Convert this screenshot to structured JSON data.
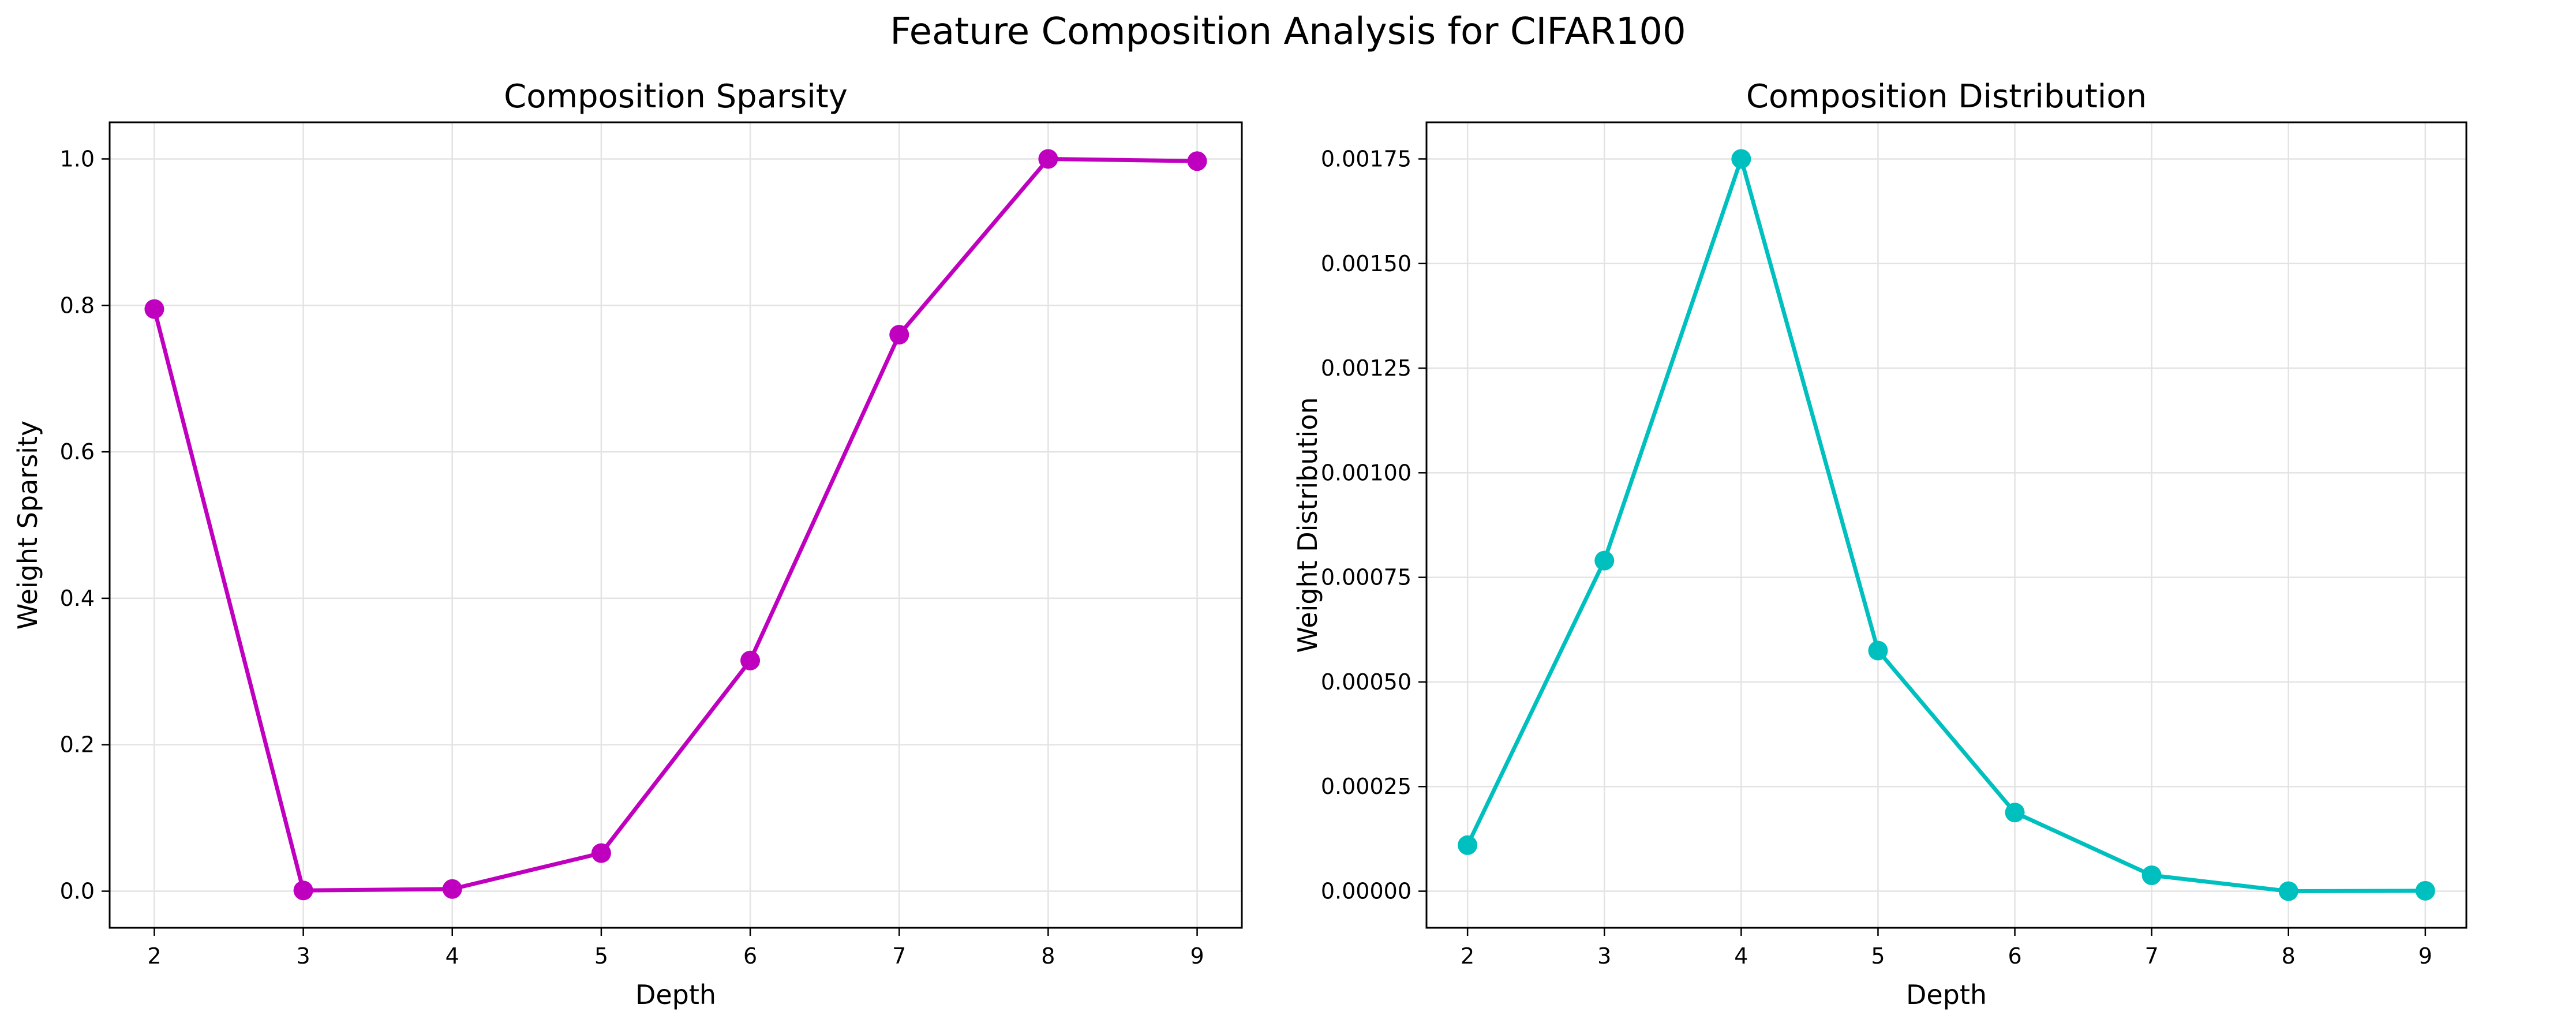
{
  "figure": {
    "suptitle": "Feature Composition Analysis for CIFAR100"
  },
  "chart_data": [
    {
      "type": "line",
      "title": "Composition Sparsity",
      "xlabel": "Depth",
      "ylabel": "Weight Sparsity",
      "x": [
        2,
        3,
        4,
        5,
        6,
        7,
        8,
        9
      ],
      "series": [
        {
          "values": [
            0.795,
            0.001,
            0.003,
            0.052,
            0.315,
            0.76,
            1.0,
            0.997
          ],
          "color": "#bf00bf"
        }
      ],
      "xlim": [
        1.7,
        9.3
      ],
      "ylim": [
        -0.05,
        1.05
      ],
      "xticks": [
        2,
        3,
        4,
        5,
        6,
        7,
        8,
        9
      ],
      "xtick_labels": [
        "2",
        "3",
        "4",
        "5",
        "6",
        "7",
        "8",
        "9"
      ],
      "yticks": [
        0.0,
        0.2,
        0.4,
        0.6,
        0.8,
        1.0
      ],
      "ytick_labels": [
        "0.0",
        "0.2",
        "0.4",
        "0.6",
        "0.8",
        "1.0"
      ],
      "grid": true,
      "marker": "circle"
    },
    {
      "type": "line",
      "title": "Composition Distribution",
      "xlabel": "Depth",
      "ylabel": "Weight Distribution",
      "x": [
        2,
        3,
        4,
        5,
        6,
        7,
        8,
        9
      ],
      "series": [
        {
          "values": [
            0.00011,
            0.00079,
            0.00175,
            0.000575,
            0.000188,
            3.8e-05,
            0.0,
            1e-06
          ],
          "color": "#00bfbf"
        }
      ],
      "xlim": [
        1.7,
        9.3
      ],
      "ylim": [
        -8.75e-05,
        0.0018375
      ],
      "xticks": [
        2,
        3,
        4,
        5,
        6,
        7,
        8,
        9
      ],
      "xtick_labels": [
        "2",
        "3",
        "4",
        "5",
        "6",
        "7",
        "8",
        "9"
      ],
      "yticks": [
        0.0,
        0.00025,
        0.0005,
        0.00075,
        0.001,
        0.00125,
        0.0015,
        0.00175
      ],
      "ytick_labels": [
        "0.00000",
        "0.00025",
        "0.00050",
        "0.00075",
        "0.00100",
        "0.00125",
        "0.00150",
        "0.00175"
      ],
      "grid": true,
      "marker": "circle"
    }
  ]
}
